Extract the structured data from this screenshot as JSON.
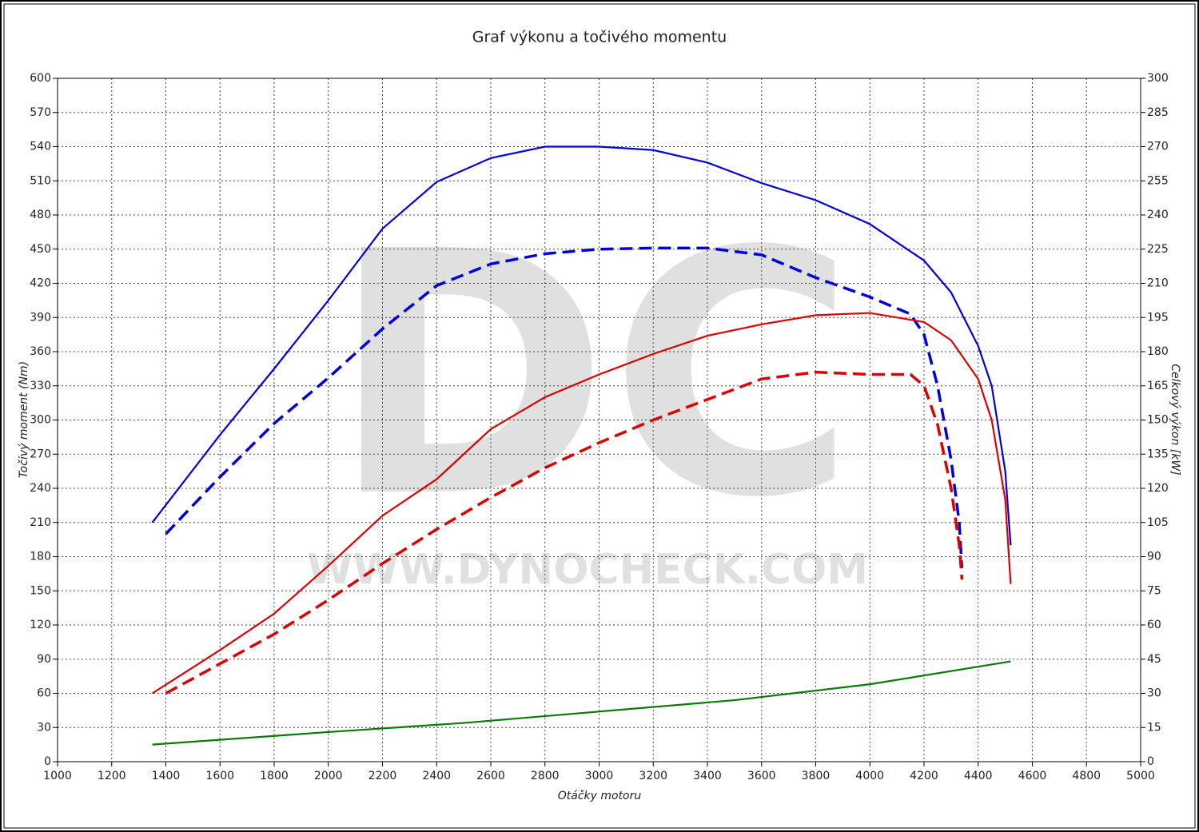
{
  "chart_data": {
    "type": "line",
    "title": "Graf výkonu a točivého momentu",
    "x_label": "Otáčky motoru",
    "y_label": "Točivý moment (Nm)",
    "y2_label": "Celkový výkon [kW]",
    "watermark": [
      "DC",
      "WWW.DYNOCHECK.COM"
    ],
    "xlim": [
      1000,
      5000
    ],
    "xticks": [
      1000,
      1200,
      1400,
      1600,
      1800,
      2000,
      2200,
      2400,
      2600,
      2800,
      3000,
      3200,
      3400,
      3600,
      3800,
      4000,
      4200,
      4400,
      4600,
      4800,
      5000
    ],
    "ylim": [
      0,
      600
    ],
    "yticks": [
      0,
      30,
      60,
      90,
      120,
      150,
      180,
      210,
      240,
      270,
      300,
      330,
      360,
      390,
      420,
      450,
      480,
      510,
      540,
      570,
      600
    ],
    "y2lim": [
      0,
      300
    ],
    "y2ticks": [
      0,
      15,
      30,
      45,
      60,
      75,
      90,
      105,
      120,
      135,
      150,
      165,
      180,
      195,
      210,
      225,
      240,
      255,
      270,
      285,
      300
    ],
    "grid": true,
    "series": [
      {
        "color": "#0000dd",
        "dashed": false,
        "x": [
          1350,
          1600,
          1800,
          2000,
          2200,
          2400,
          2600,
          2800,
          3000,
          3200,
          3400,
          3600,
          3800,
          4000,
          4200,
          4300,
          4400,
          4450,
          4500,
          4520
        ],
        "values": [
          210,
          287,
          345,
          405,
          468,
          509,
          530,
          540,
          540,
          537,
          526,
          508,
          493,
          472,
          440,
          412,
          365,
          330,
          255,
          190
        ]
      },
      {
        "color": "#0000dd",
        "dashed": true,
        "x": [
          1400,
          1600,
          1800,
          2000,
          2200,
          2400,
          2600,
          2800,
          3000,
          3200,
          3400,
          3600,
          3800,
          4000,
          4150,
          4200,
          4250,
          4300,
          4330,
          4340
        ],
        "values": [
          200,
          250,
          297,
          337,
          380,
          418,
          437,
          446,
          450,
          451,
          451,
          445,
          425,
          408,
          393,
          375,
          330,
          265,
          210,
          170
        ]
      },
      {
        "color": "#dd0000",
        "dashed": false,
        "axis": "y2",
        "x": [
          1350,
          1600,
          1800,
          2000,
          2200,
          2400,
          2600,
          2800,
          3000,
          3200,
          3400,
          3600,
          3800,
          4000,
          4200,
          4300,
          4400,
          4450,
          4500,
          4520
        ],
        "values": [
          30,
          49,
          65,
          86,
          108,
          124,
          146,
          160,
          170,
          179,
          187,
          192,
          196,
          197,
          193,
          185,
          168,
          150,
          115,
          78
        ]
      },
      {
        "color": "#dd0000",
        "dashed": true,
        "axis": "y2",
        "x": [
          1400,
          1600,
          1800,
          2000,
          2200,
          2400,
          2600,
          2800,
          3000,
          3200,
          3400,
          3600,
          3800,
          4000,
          4150,
          4200,
          4250,
          4300,
          4330,
          4340
        ],
        "values": [
          30,
          43,
          56,
          71,
          87,
          102,
          116,
          129,
          140,
          150,
          159,
          168,
          171,
          170,
          170,
          165,
          148,
          120,
          95,
          80
        ]
      },
      {
        "color": "#0a7a0a",
        "dashed": false,
        "axis": "y2",
        "x": [
          1350,
          2000,
          2500,
          3000,
          3500,
          4000,
          4520
        ],
        "values": [
          7.5,
          13,
          17,
          22,
          27,
          34,
          44
        ]
      }
    ]
  }
}
